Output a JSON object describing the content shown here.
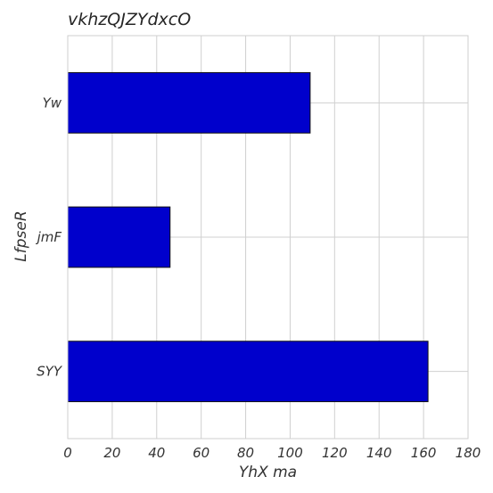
{
  "chart_data": {
    "type": "bar",
    "orientation": "horizontal",
    "title": "vkhzQJZYdxcO",
    "xlabel": "YhX ma",
    "ylabel": "LfpseR",
    "categories": [
      "Yw",
      "jmF",
      "SYY"
    ],
    "values": [
      109,
      46,
      162
    ],
    "xlim": [
      0,
      180
    ],
    "xticks": [
      "0",
      "20",
      "40",
      "60",
      "80",
      "100",
      "120",
      "140",
      "160",
      "180"
    ],
    "grid": true,
    "bar_color": "#0000cc"
  }
}
